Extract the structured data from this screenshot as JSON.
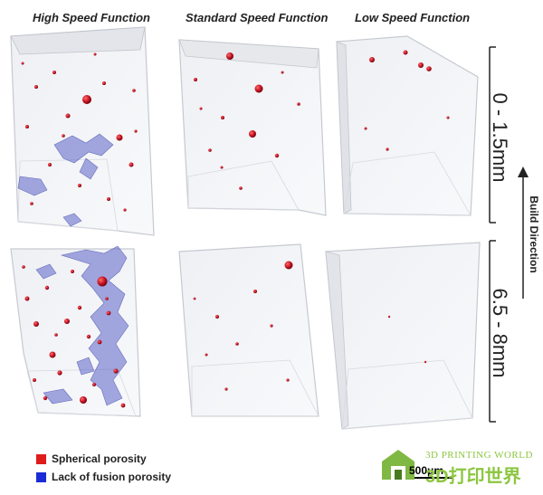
{
  "columns": [
    "High Speed Function",
    "Standard Speed Function",
    "Low Speed Function"
  ],
  "rows": [
    "0 - 1.5mm",
    "6.5 - 8mm"
  ],
  "build_direction": "Build Direction",
  "legend": [
    {
      "label": "Spherical porosity",
      "color": "#e01b1b"
    },
    {
      "label": "Lack of fusion porosity",
      "color": "#1b2bd6"
    }
  ],
  "scale_bar": "500μm",
  "watermark": {
    "top": "3D PRINTING WORLD",
    "main": "3D打印世界"
  },
  "colors": {
    "pore_red": "#b01020",
    "lof_blue": "#5b63c8",
    "specimen_edge": "#b8bcc4"
  }
}
